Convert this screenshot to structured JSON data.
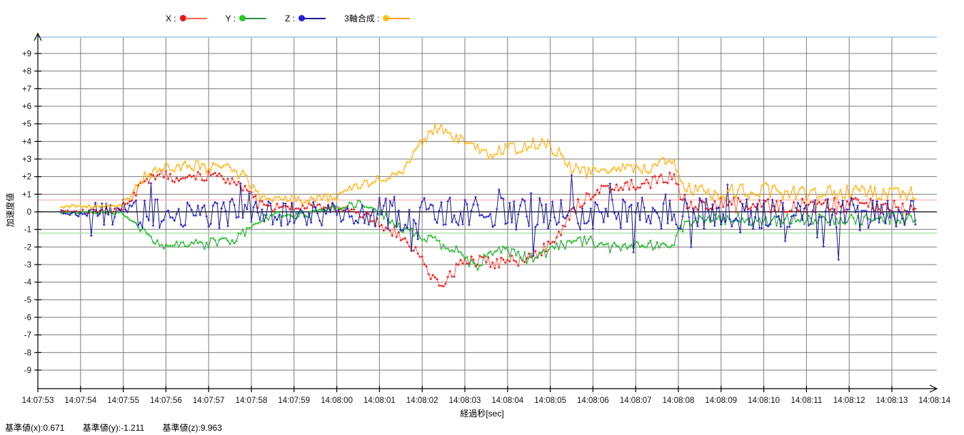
{
  "legend": {
    "items": [
      {
        "label": "X :",
        "name": "X"
      },
      {
        "label": "Y :",
        "name": "Y"
      },
      {
        "label": "Z :",
        "name": "Z"
      },
      {
        "label": "3軸合成 :",
        "name": "3軸合成"
      }
    ]
  },
  "footer": {
    "items": [
      "基準値(x):0.671",
      "基準値(y):-1.211",
      "基準値(z):9.963"
    ]
  },
  "chart_data": {
    "type": "line",
    "title": "",
    "xlabel": "経過秒[sec]",
    "ylabel": "加速度値",
    "ylim": [
      -10,
      10
    ],
    "grid": true,
    "legend_position": "top",
    "x_tick_labels": [
      "14:07:53",
      "14:07:54",
      "14:07:55",
      "14:07:56",
      "14:07:57",
      "14:07:58",
      "14:07:59",
      "14:08:00",
      "14:08:01",
      "14:08:02",
      "14:08:03",
      "14:08:04",
      "14:08:05",
      "14:08:06",
      "14:08:07",
      "14:08:08",
      "14:08:09",
      "14:08:10",
      "14:08:11",
      "14:08:12",
      "14:08:13",
      "14:08:14"
    ],
    "y_ticks": [
      {
        "value": 9,
        "label": "+9"
      },
      {
        "value": 8,
        "label": "+8"
      },
      {
        "value": 7,
        "label": "+7"
      },
      {
        "value": 6,
        "label": "+6"
      },
      {
        "value": 5,
        "label": "+5"
      },
      {
        "value": 4,
        "label": "+4"
      },
      {
        "value": 3,
        "label": "+3"
      },
      {
        "value": 2,
        "label": "+2"
      },
      {
        "value": 1,
        "label": "+1"
      },
      {
        "value": 0,
        "label": "0"
      },
      {
        "value": -1,
        "label": "-1"
      },
      {
        "value": -2,
        "label": "-2"
      },
      {
        "value": -3,
        "label": "-3"
      },
      {
        "value": -4,
        "label": "-4"
      },
      {
        "value": -5,
        "label": "-5"
      },
      {
        "value": -6,
        "label": "-6"
      },
      {
        "value": -7,
        "label": "-7"
      },
      {
        "value": -8,
        "label": "-8"
      },
      {
        "value": -9,
        "label": "-9"
      }
    ],
    "reference_lines": [
      {
        "label": "基準値(x)",
        "value": 0.671,
        "color": "#ffb9b9"
      },
      {
        "label": "基準値(y)",
        "value": -1.211,
        "color": "#9fdf9f"
      }
    ],
    "reference_values": {
      "x": 0.671,
      "y": -1.211,
      "z": 9.963
    },
    "colors": {
      "grid": "#7d7d7d",
      "zero_line": "#000000",
      "axis": "#000000",
      "top_border": "#aed6e8"
    },
    "sampling": {
      "t_start": 0.55,
      "t_end": 20.55,
      "interval": 0.05
    },
    "series": [
      {
        "name": "X",
        "marker_color": "#ee1111",
        "line_color": "#ff6252",
        "seed": 101,
        "spike_chance": 0,
        "mean": [
          [
            0.55,
            0.05
          ],
          [
            1.9,
            0.05
          ],
          [
            2.1,
            0.5
          ],
          [
            2.4,
            1.5
          ],
          [
            2.7,
            2.0
          ],
          [
            3.0,
            2.2
          ],
          [
            3.3,
            1.8
          ],
          [
            3.6,
            2.1
          ],
          [
            3.9,
            1.9
          ],
          [
            4.2,
            2.1
          ],
          [
            4.5,
            1.9
          ],
          [
            4.8,
            1.5
          ],
          [
            5.0,
            0.9
          ],
          [
            5.2,
            0.4
          ],
          [
            5.5,
            0.25
          ],
          [
            6.2,
            0.3
          ],
          [
            7.0,
            0.25
          ],
          [
            7.5,
            0.0
          ],
          [
            7.9,
            -0.6
          ],
          [
            8.3,
            -1.1
          ],
          [
            8.6,
            -1.5
          ],
          [
            8.9,
            -2.3
          ],
          [
            9.15,
            -3.4
          ],
          [
            9.4,
            -4.1
          ],
          [
            9.6,
            -3.8
          ],
          [
            9.9,
            -3.0
          ],
          [
            10.3,
            -2.7
          ],
          [
            10.7,
            -2.9
          ],
          [
            11.0,
            -2.6
          ],
          [
            11.4,
            -2.8
          ],
          [
            11.7,
            -2.4
          ],
          [
            12.0,
            -1.7
          ],
          [
            12.3,
            -0.9
          ],
          [
            12.6,
            0.3
          ],
          [
            12.9,
            0.9
          ],
          [
            13.3,
            1.4
          ],
          [
            13.8,
            1.5
          ],
          [
            14.2,
            1.6
          ],
          [
            14.6,
            1.8
          ],
          [
            14.9,
            2.0
          ],
          [
            15.05,
            1.0
          ],
          [
            15.2,
            0.4
          ],
          [
            16.0,
            0.35
          ],
          [
            17.0,
            0.4
          ],
          [
            18.0,
            0.3
          ],
          [
            19.0,
            0.35
          ],
          [
            20.0,
            0.3
          ],
          [
            20.55,
            0.1
          ]
        ],
        "noise": [
          [
            0.55,
            0.12
          ],
          [
            1.9,
            0.15
          ],
          [
            2.2,
            0.3
          ],
          [
            5.0,
            0.35
          ],
          [
            5.4,
            0.25
          ],
          [
            7.4,
            0.25
          ],
          [
            8.0,
            0.3
          ],
          [
            9.0,
            0.4
          ],
          [
            12.0,
            0.35
          ],
          [
            13.0,
            0.3
          ],
          [
            14.9,
            0.35
          ],
          [
            15.1,
            0.45
          ],
          [
            20.55,
            0.45
          ]
        ]
      },
      {
        "name": "Y",
        "marker_color": "#22cc22",
        "line_color": "#2f8f4f",
        "seed": 202,
        "spike_chance": 0,
        "mean": [
          [
            0.55,
            -0.02
          ],
          [
            1.9,
            -0.05
          ],
          [
            2.1,
            -0.3
          ],
          [
            2.4,
            -1.1
          ],
          [
            2.7,
            -1.6
          ],
          [
            3.0,
            -1.9
          ],
          [
            3.4,
            -1.7
          ],
          [
            3.8,
            -1.9
          ],
          [
            4.2,
            -1.7
          ],
          [
            4.5,
            -1.8
          ],
          [
            4.8,
            -1.3
          ],
          [
            5.0,
            -0.8
          ],
          [
            5.2,
            -0.35
          ],
          [
            5.6,
            -0.2
          ],
          [
            6.3,
            -0.15
          ],
          [
            7.0,
            0.3
          ],
          [
            7.5,
            0.45
          ],
          [
            7.9,
            0.1
          ],
          [
            8.3,
            -0.5
          ],
          [
            8.7,
            -1.1
          ],
          [
            9.1,
            -1.5
          ],
          [
            9.5,
            -1.9
          ],
          [
            9.8,
            -2.2
          ],
          [
            10.1,
            -2.9
          ],
          [
            10.3,
            -3.1
          ],
          [
            10.5,
            -2.6
          ],
          [
            10.8,
            -2.2
          ],
          [
            11.2,
            -2.3
          ],
          [
            11.5,
            -2.7
          ],
          [
            11.8,
            -2.4
          ],
          [
            12.2,
            -1.9
          ],
          [
            12.6,
            -1.6
          ],
          [
            13.0,
            -1.7
          ],
          [
            13.4,
            -2.0
          ],
          [
            13.8,
            -2.1
          ],
          [
            14.2,
            -1.8
          ],
          [
            14.6,
            -2.0
          ],
          [
            14.9,
            -1.7
          ],
          [
            15.1,
            -0.8
          ],
          [
            15.3,
            -0.45
          ],
          [
            16.0,
            -0.4
          ],
          [
            17.0,
            -0.5
          ],
          [
            18.0,
            -0.4
          ],
          [
            19.0,
            -0.5
          ],
          [
            20.0,
            -0.4
          ],
          [
            20.55,
            -0.3
          ]
        ],
        "noise": [
          [
            0.55,
            0.08
          ],
          [
            1.9,
            0.1
          ],
          [
            2.3,
            0.25
          ],
          [
            5.0,
            0.3
          ],
          [
            5.5,
            0.2
          ],
          [
            7.5,
            0.2
          ],
          [
            8.5,
            0.3
          ],
          [
            15.0,
            0.3
          ],
          [
            15.3,
            0.35
          ],
          [
            20.55,
            0.35
          ]
        ]
      },
      {
        "name": "Z",
        "marker_color": "#2222dd",
        "line_color": "#1a1a8c",
        "seed": 303,
        "spike_chance": 0.05,
        "mean": [
          [
            0.55,
            -0.05
          ],
          [
            1.2,
            -0.1
          ],
          [
            20.55,
            -0.1
          ]
        ],
        "noise": [
          [
            0.55,
            0.15
          ],
          [
            1.1,
            0.2
          ],
          [
            1.4,
            0.7
          ],
          [
            2.0,
            0.8
          ],
          [
            4.8,
            0.85
          ],
          [
            5.3,
            0.7
          ],
          [
            7.2,
            0.65
          ],
          [
            7.6,
            0.8
          ],
          [
            8.2,
            1.0
          ],
          [
            9.0,
            0.9
          ],
          [
            10.0,
            0.95
          ],
          [
            12.0,
            0.9
          ],
          [
            13.5,
            0.95
          ],
          [
            15.0,
            0.9
          ],
          [
            16.0,
            0.85
          ],
          [
            18.5,
            0.9
          ],
          [
            20.55,
            0.8
          ]
        ]
      },
      {
        "name": "3軸合成",
        "marker_color": "#ffc019",
        "line_color": "#ff9f00",
        "seed": 404,
        "spike_chance": 0,
        "mean": [
          [
            0.55,
            0.3
          ],
          [
            1.9,
            0.3
          ],
          [
            2.1,
            0.7
          ],
          [
            2.4,
            1.8
          ],
          [
            2.7,
            2.3
          ],
          [
            3.0,
            2.8
          ],
          [
            3.3,
            2.4
          ],
          [
            3.6,
            2.7
          ],
          [
            3.9,
            2.5
          ],
          [
            4.2,
            2.6
          ],
          [
            4.5,
            2.4
          ],
          [
            4.8,
            2.0
          ],
          [
            5.0,
            1.4
          ],
          [
            5.2,
            0.8
          ],
          [
            5.6,
            0.65
          ],
          [
            6.3,
            0.7
          ],
          [
            7.0,
            0.85
          ],
          [
            7.4,
            1.5
          ],
          [
            7.8,
            1.7
          ],
          [
            8.2,
            1.9
          ],
          [
            8.6,
            2.5
          ],
          [
            9.0,
            3.9
          ],
          [
            9.25,
            4.7
          ],
          [
            9.5,
            4.8
          ],
          [
            9.8,
            4.2
          ],
          [
            10.1,
            3.7
          ],
          [
            10.5,
            3.3
          ],
          [
            10.9,
            3.5
          ],
          [
            11.3,
            3.6
          ],
          [
            11.6,
            3.8
          ],
          [
            11.9,
            3.9
          ],
          [
            12.2,
            3.3
          ],
          [
            12.5,
            2.5
          ],
          [
            12.8,
            2.2
          ],
          [
            13.2,
            2.5
          ],
          [
            13.6,
            2.3
          ],
          [
            14.0,
            2.5
          ],
          [
            14.4,
            2.4
          ],
          [
            14.8,
            3.0
          ],
          [
            15.0,
            2.2
          ],
          [
            15.2,
            1.3
          ],
          [
            16.0,
            1.1
          ],
          [
            17.0,
            1.2
          ],
          [
            18.0,
            1.0
          ],
          [
            19.0,
            1.1
          ],
          [
            20.0,
            1.0
          ],
          [
            20.55,
            1.1
          ]
        ],
        "noise": [
          [
            0.55,
            0.1
          ],
          [
            1.9,
            0.12
          ],
          [
            2.3,
            0.3
          ],
          [
            5.0,
            0.35
          ],
          [
            5.5,
            0.25
          ],
          [
            7.2,
            0.25
          ],
          [
            8.0,
            0.3
          ],
          [
            9.0,
            0.35
          ],
          [
            15.0,
            0.35
          ],
          [
            15.2,
            0.45
          ],
          [
            20.55,
            0.45
          ]
        ]
      }
    ]
  }
}
